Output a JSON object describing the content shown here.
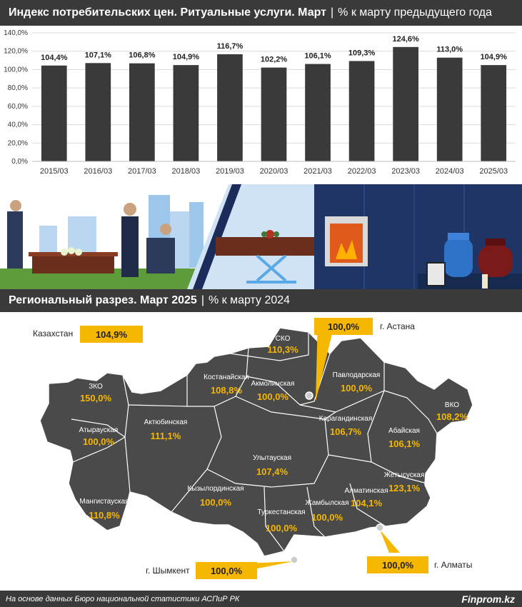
{
  "header1": {
    "title": "Индекс потребительских цен. Ритуальные услуги. Март",
    "sep": "|",
    "subtitle": "% к марту предыдущего года"
  },
  "header2": {
    "title": "Региональный разрез. Март 2025",
    "sep": "|",
    "subtitle": "% к марту 2024"
  },
  "chart_data": {
    "type": "bar",
    "categories": [
      "2015/03",
      "2016/03",
      "2017/03",
      "2018/03",
      "2019/03",
      "2020/03",
      "2021/03",
      "2022/03",
      "2023/03",
      "2024/03",
      "2025/03"
    ],
    "values": [
      104.4,
      107.1,
      106.8,
      104.9,
      116.7,
      102.2,
      106.1,
      109.3,
      124.6,
      113.0,
      104.9
    ],
    "value_labels": [
      "104,4%",
      "107,1%",
      "106,8%",
      "104,9%",
      "116,7%",
      "102,2%",
      "106,1%",
      "109,3%",
      "124,6%",
      "113,0%",
      "104,9%"
    ],
    "yticks": [
      "0,0%",
      "20,0%",
      "40,0%",
      "60,0%",
      "80,0%",
      "100,0%",
      "120,0%",
      "140,0%"
    ],
    "ylim": [
      0,
      140
    ],
    "bar_color": "#3a3a3a",
    "grid": true
  },
  "map": {
    "kazakhstan": {
      "label": "Казахстан",
      "value": "104,9%"
    },
    "cities": [
      {
        "label": "г. Астана",
        "value": "100,0%"
      },
      {
        "label": "г. Шымкент",
        "value": "100,0%"
      },
      {
        "label": "г. Алматы",
        "value": "100,0%"
      }
    ],
    "regions": [
      {
        "label": "СКО",
        "value": "110,3%"
      },
      {
        "label": "ЗКО",
        "value": "150,0%"
      },
      {
        "label": "Костанайская",
        "value": "108,8%"
      },
      {
        "label": "Акмолинская",
        "value": "100,0%"
      },
      {
        "label": "Павлодарская",
        "value": "100,0%"
      },
      {
        "label": "ВКО",
        "value": "108,2%"
      },
      {
        "label": "Атырауская",
        "value": "100,0%"
      },
      {
        "label": "Актюбинская",
        "value": "111,1%"
      },
      {
        "label": "Карагандинская",
        "value": "106,7%"
      },
      {
        "label": "Абайская",
        "value": "106,1%"
      },
      {
        "label": "Улытауская",
        "value": "107,4%"
      },
      {
        "label": "Жетысуская",
        "value": "123,1%"
      },
      {
        "label": "Мангистауская",
        "value": "110,8%"
      },
      {
        "label": "Кызылординская",
        "value": "100,0%"
      },
      {
        "label": "Алматинская",
        "value": "104,1%"
      },
      {
        "label": "Жамбылская",
        "value": "100,0%"
      },
      {
        "label": "Туркестанская",
        "value": "100,0%"
      }
    ],
    "map_color": "#4a4a4a",
    "accent": "#f5b700"
  },
  "footer": {
    "source": "На основе данных Бюро национальной статистики АСПиР РК",
    "brand": "Finprom.kz"
  }
}
